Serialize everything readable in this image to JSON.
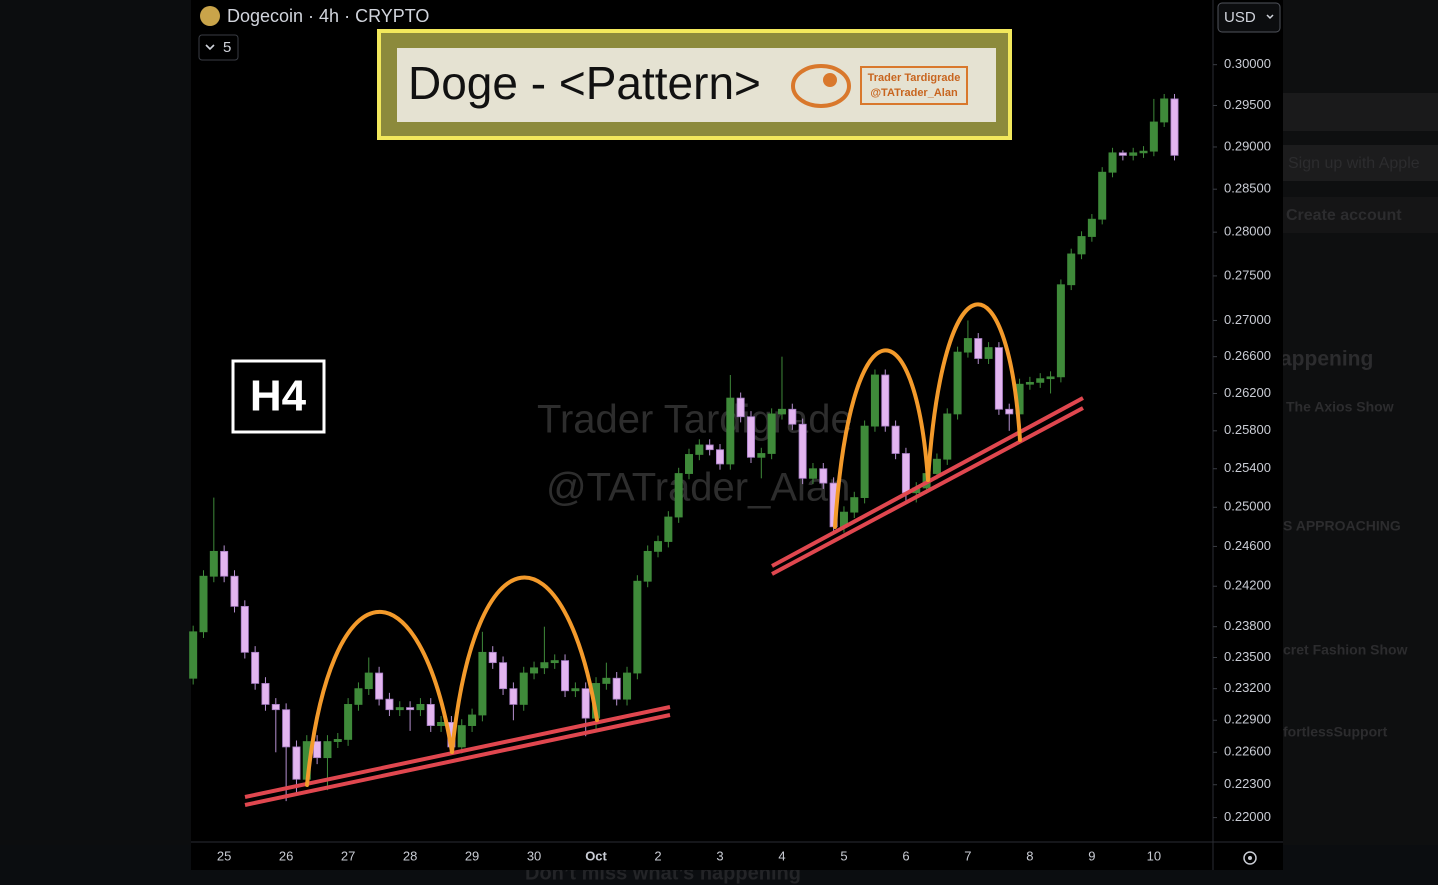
{
  "chart_data": {
    "type": "candlestick",
    "symbol": "Dogecoin · 4h · CRYPTO",
    "indicator_count": "5",
    "currency": "USD",
    "banner_title": "Doge - <Pattern>",
    "badge": [
      "Trader Tardigrade",
      "@TATrader_Alan"
    ],
    "timeframe_label": "H4",
    "watermark": [
      "Trader Tardigrade",
      "@TATrader_Alan"
    ],
    "log_scale": true,
    "up_color": "#3f8a3a",
    "down_color": "#e3b5f0",
    "ylim": [
      0.2178,
      0.3081
    ],
    "yticks": [
      {
        "value": 0.3,
        "label": "0.30000"
      },
      {
        "value": 0.295,
        "label": "0.29500"
      },
      {
        "value": 0.29,
        "label": "0.29000"
      },
      {
        "value": 0.285,
        "label": "0.28500"
      },
      {
        "value": 0.28,
        "label": "0.28000"
      },
      {
        "value": 0.275,
        "label": "0.27500"
      },
      {
        "value": 0.27,
        "label": "0.27000"
      },
      {
        "value": 0.266,
        "label": "0.26600"
      },
      {
        "value": 0.262,
        "label": "0.26200"
      },
      {
        "value": 0.258,
        "label": "0.25800"
      },
      {
        "value": 0.254,
        "label": "0.25400"
      },
      {
        "value": 0.25,
        "label": "0.25000"
      },
      {
        "value": 0.246,
        "label": "0.24600"
      },
      {
        "value": 0.242,
        "label": "0.24200"
      },
      {
        "value": 0.238,
        "label": "0.23800"
      },
      {
        "value": 0.235,
        "label": "0.23500"
      },
      {
        "value": 0.232,
        "label": "0.23200"
      },
      {
        "value": 0.229,
        "label": "0.22900"
      },
      {
        "value": 0.226,
        "label": "0.22600"
      },
      {
        "value": 0.223,
        "label": "0.22300"
      },
      {
        "value": 0.22,
        "label": "0.22000"
      }
    ],
    "categories": [
      null,
      null,
      null,
      "25",
      null,
      null,
      null,
      null,
      null,
      "26",
      null,
      null,
      null,
      null,
      null,
      "27",
      null,
      null,
      null,
      null,
      null,
      "28",
      null,
      null,
      null,
      null,
      null,
      "29",
      null,
      null,
      null,
      null,
      null,
      "30",
      null,
      null,
      null,
      null,
      null,
      "Oct",
      null,
      null,
      null,
      null,
      null,
      "2",
      null,
      null,
      null,
      null,
      null,
      "3",
      null,
      null,
      null,
      null,
      null,
      "4",
      null,
      null,
      null,
      null,
      null,
      "5",
      null,
      null,
      null,
      null,
      null,
      "6",
      null,
      null,
      null,
      null,
      null,
      "7",
      null,
      null,
      null,
      null,
      null,
      "8",
      null,
      null,
      null,
      null,
      null,
      "9",
      null,
      null,
      null,
      null,
      null,
      "10",
      null,
      null
    ],
    "open": [
      0.233,
      0.2375,
      0.243,
      0.2455,
      0.243,
      0.24,
      0.2355,
      0.2325,
      0.2305,
      0.23,
      0.2265,
      0.2235,
      0.227,
      0.2255,
      0.227,
      0.2272,
      0.2305,
      0.232,
      0.2335,
      0.231,
      0.23,
      0.2302,
      0.23,
      0.2305,
      0.2285,
      0.2288,
      0.2265,
      0.2285,
      0.2295,
      0.2355,
      0.2345,
      0.232,
      0.2305,
      0.2335,
      0.234,
      0.2345,
      0.2347,
      0.2318,
      0.232,
      0.2292,
      0.2325,
      0.233,
      0.231,
      0.2335,
      0.2425,
      0.2455,
      0.2465,
      0.249,
      0.2535,
      0.2555,
      0.2565,
      0.256,
      0.2545,
      0.2615,
      0.2595,
      0.2552,
      0.2556,
      0.2598,
      0.2603,
      0.2587,
      0.253,
      0.254,
      0.2525,
      0.248,
      0.2495,
      0.251,
      0.2585,
      0.264,
      0.2585,
      0.2556,
      0.2515,
      0.252,
      0.2535,
      0.255,
      0.2598,
      0.2665,
      0.268,
      0.2658,
      0.267,
      0.2603,
      0.2598,
      0.263,
      0.2632,
      0.2636,
      0.2638,
      0.274,
      0.2775,
      0.2795,
      0.2815,
      0.287,
      0.2893,
      0.289,
      0.2893,
      0.2895,
      0.293,
      0.2958
    ],
    "high": [
      0.2381,
      0.2436,
      0.251,
      0.2461,
      0.2436,
      0.2406,
      0.2361,
      0.2331,
      0.2311,
      0.2306,
      0.2271,
      0.2276,
      0.2276,
      0.2276,
      0.2278,
      0.2311,
      0.2326,
      0.235,
      0.2341,
      0.2316,
      0.2308,
      0.2308,
      0.2311,
      0.2311,
      0.2294,
      0.2294,
      0.2291,
      0.2301,
      0.2375,
      0.2361,
      0.2351,
      0.2326,
      0.2341,
      0.2346,
      0.238,
      0.2353,
      0.2353,
      0.2326,
      0.2326,
      0.2331,
      0.2345,
      0.2336,
      0.2341,
      0.2431,
      0.2461,
      0.2471,
      0.2496,
      0.2541,
      0.2561,
      0.2571,
      0.2571,
      0.2566,
      0.264,
      0.2621,
      0.2601,
      0.2562,
      0.2604,
      0.266,
      0.2609,
      0.2593,
      0.2546,
      0.2546,
      0.2531,
      0.2501,
      0.2516,
      0.2591,
      0.2646,
      0.2646,
      0.2591,
      0.2562,
      0.2526,
      0.2541,
      0.2556,
      0.2604,
      0.2671,
      0.27,
      0.2686,
      0.2676,
      0.2676,
      0.2609,
      0.2636,
      0.2638,
      0.2642,
      0.2644,
      0.2746,
      0.2781,
      0.2801,
      0.2821,
      0.2876,
      0.2899,
      0.2896,
      0.2899,
      0.2901,
      0.2958,
      0.2964,
      0.2964
    ],
    "low": [
      0.2324,
      0.2369,
      0.2424,
      0.2424,
      0.2394,
      0.2349,
      0.2319,
      0.2299,
      0.226,
      0.2215,
      0.222,
      0.2229,
      0.2249,
      0.2225,
      0.2264,
      0.2266,
      0.2299,
      0.2314,
      0.2304,
      0.2294,
      0.2294,
      0.228,
      0.2294,
      0.2279,
      0.2279,
      0.2259,
      0.2259,
      0.2279,
      0.2289,
      0.2339,
      0.2314,
      0.229,
      0.2299,
      0.2329,
      0.2334,
      0.2339,
      0.2312,
      0.2312,
      0.2275,
      0.228,
      0.2319,
      0.2304,
      0.2304,
      0.2329,
      0.2419,
      0.2449,
      0.2459,
      0.2484,
      0.2529,
      0.2549,
      0.2554,
      0.2539,
      0.2539,
      0.2589,
      0.2546,
      0.253,
      0.255,
      0.2592,
      0.2581,
      0.2524,
      0.2524,
      0.2519,
      0.2474,
      0.2474,
      0.2489,
      0.2504,
      0.2579,
      0.2579,
      0.255,
      0.2505,
      0.2505,
      0.2514,
      0.2529,
      0.2544,
      0.2592,
      0.2659,
      0.2652,
      0.2652,
      0.2597,
      0.258,
      0.2592,
      0.2624,
      0.2626,
      0.262,
      0.2632,
      0.2734,
      0.2769,
      0.2789,
      0.2809,
      0.2864,
      0.2884,
      0.2884,
      0.2887,
      0.2889,
      0.2924,
      0.2884
    ],
    "close": [
      0.2375,
      0.243,
      0.2455,
      0.243,
      0.24,
      0.2355,
      0.2325,
      0.2305,
      0.23,
      0.2265,
      0.2235,
      0.227,
      0.2255,
      0.227,
      0.2272,
      0.2305,
      0.232,
      0.2335,
      0.231,
      0.23,
      0.2302,
      0.23,
      0.2305,
      0.2285,
      0.2288,
      0.2265,
      0.2285,
      0.2295,
      0.2355,
      0.2345,
      0.232,
      0.2305,
      0.2335,
      0.234,
      0.2345,
      0.2347,
      0.2318,
      0.232,
      0.2292,
      0.2325,
      0.233,
      0.231,
      0.2335,
      0.2425,
      0.2455,
      0.2465,
      0.249,
      0.2535,
      0.2555,
      0.2565,
      0.256,
      0.2545,
      0.2615,
      0.2595,
      0.2552,
      0.2556,
      0.2598,
      0.2603,
      0.2587,
      0.253,
      0.254,
      0.2525,
      0.248,
      0.2495,
      0.251,
      0.2585,
      0.264,
      0.2585,
      0.2556,
      0.2515,
      0.252,
      0.2535,
      0.255,
      0.2598,
      0.2665,
      0.268,
      0.2658,
      0.267,
      0.2603,
      0.2598,
      0.263,
      0.2632,
      0.2636,
      0.2638,
      0.274,
      0.2775,
      0.2795,
      0.2815,
      0.287,
      0.2893,
      0.289,
      0.2893,
      0.2895,
      0.293,
      0.2958,
      0.289
    ]
  },
  "background_page": {
    "buttons": [
      "Sign up with Apple",
      "Create account"
    ],
    "section": "appening",
    "items": [
      "The Axios Show",
      "S APPROACHING",
      "cret Fashion Show",
      "fortlessSupport"
    ],
    "footer": "Don’t miss what’s happening"
  }
}
